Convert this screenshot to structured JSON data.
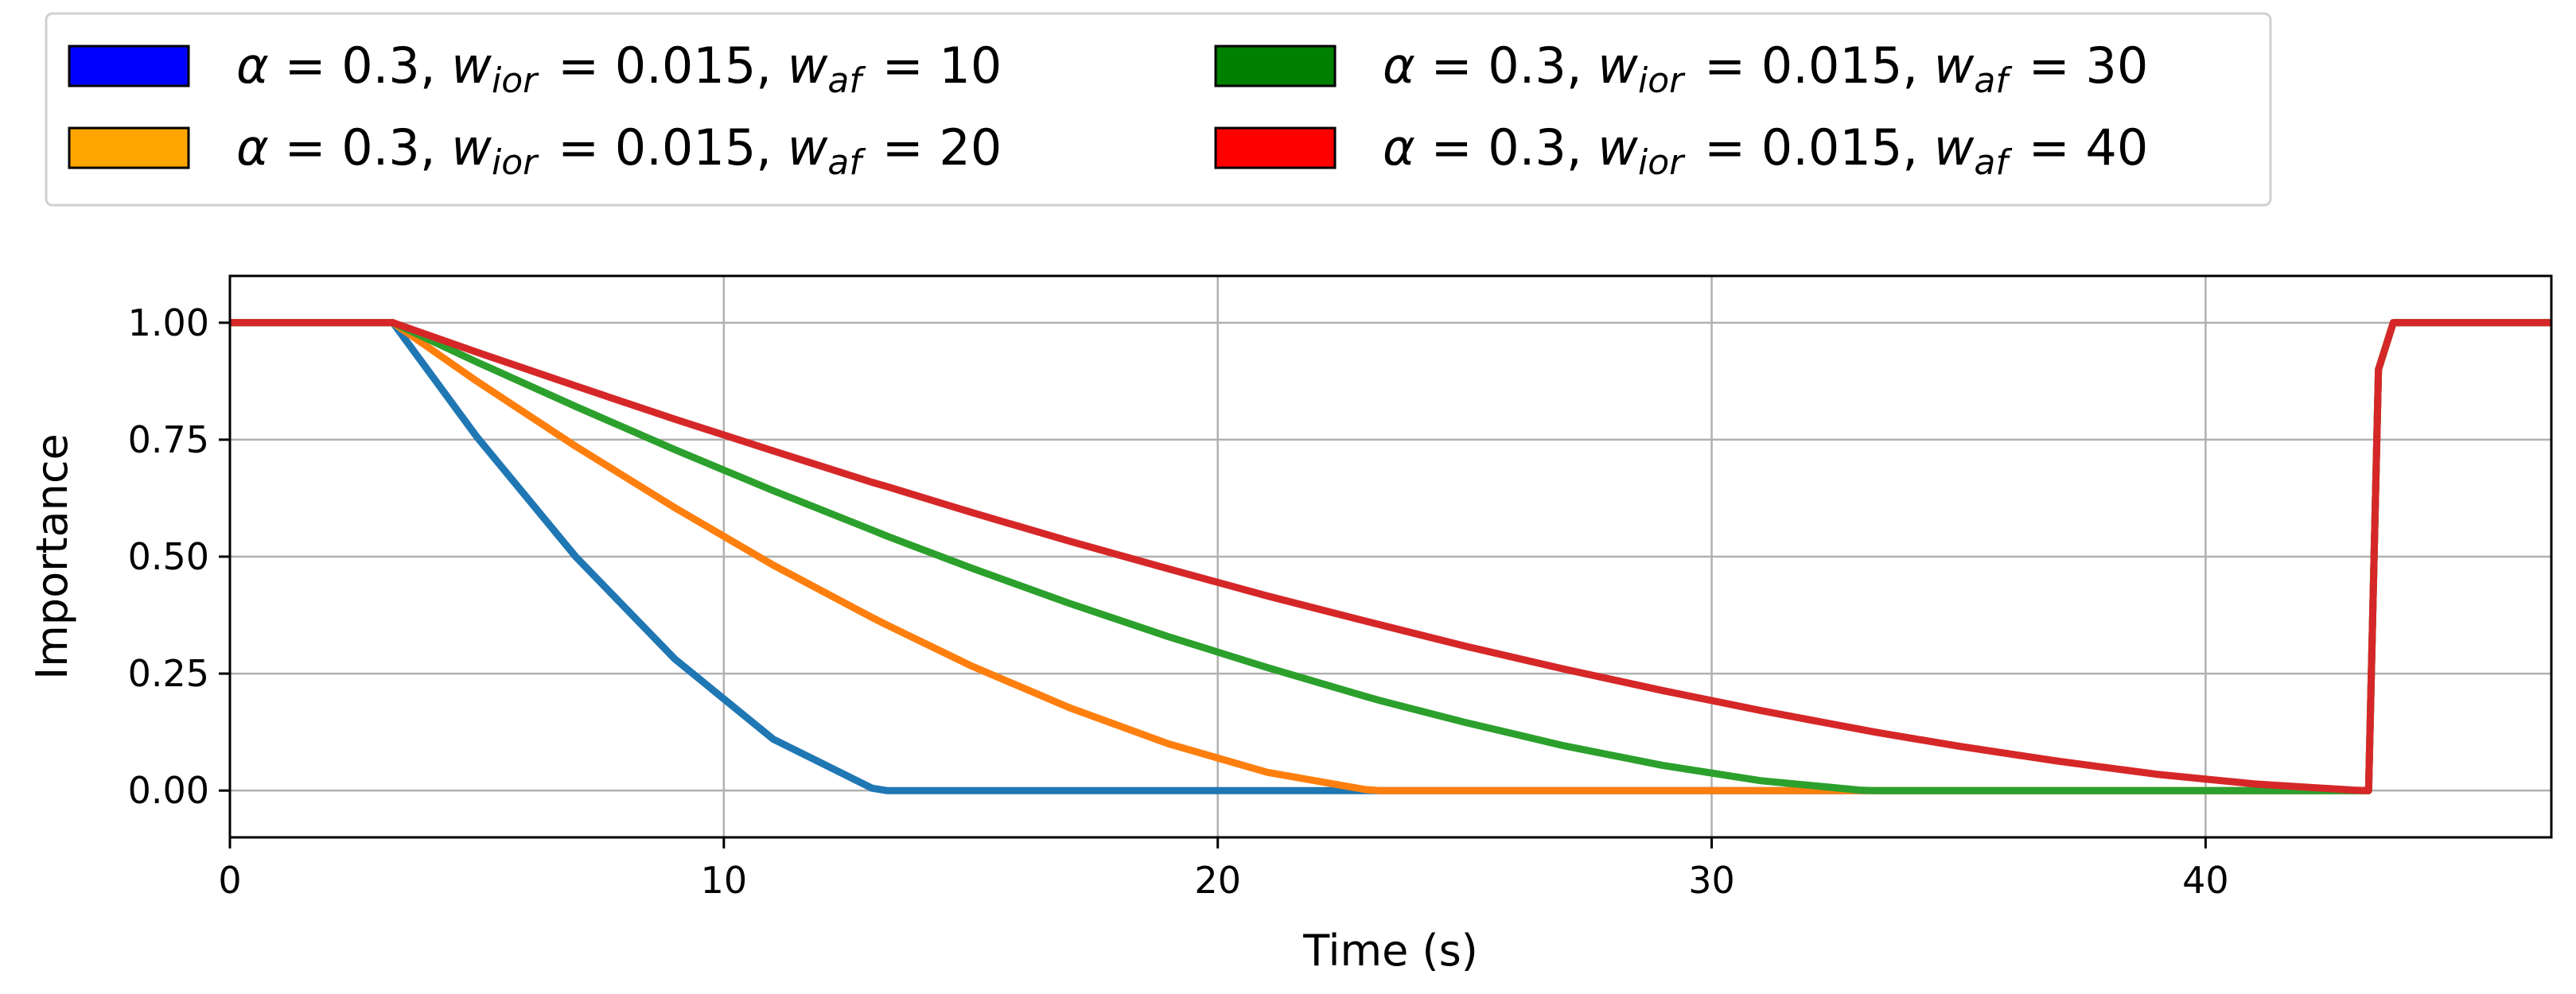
{
  "chart_data": {
    "type": "line",
    "title": "",
    "xlabel": "Time (s)",
    "ylabel": "Importance",
    "xlim": [
      0,
      47
    ],
    "ylim": [
      -0.1,
      1.1
    ],
    "grid": true,
    "legend_placement": "top-left, above plot (2 columns)",
    "xticks": [
      0,
      10,
      20,
      30,
      40
    ],
    "xtick_labels": [
      "0",
      "10",
      "20",
      "30",
      "40"
    ],
    "yticks": [
      0,
      0.25,
      0.5,
      0.75,
      1.0
    ],
    "ytick_labels": [
      "0.00",
      "0.25",
      "0.50",
      "0.75",
      "1.00"
    ],
    "x": [
      0,
      3.3,
      5,
      7,
      9,
      11,
      13,
      13.3,
      15,
      17,
      19,
      21,
      23,
      23.3,
      25,
      27,
      29,
      31,
      33,
      33.3,
      35,
      37,
      39,
      41,
      43,
      43.3,
      43.5,
      43.8,
      47
    ],
    "series": [
      {
        "name": "α = 0.3, w_ior = 0.015, w_af = 10",
        "line_color": "#1f77b4",
        "legend_color": "#0000ff",
        "values": [
          1,
          1,
          0.756,
          0.5,
          0.282,
          0.11,
          0.005,
          0,
          0,
          0,
          0,
          0,
          0,
          0,
          0,
          0,
          0,
          0,
          0,
          0,
          0,
          0,
          0,
          0,
          0,
          0,
          0.9,
          1,
          1
        ]
      },
      {
        "name": "α = 0.3, w_ior = 0.015, w_af = 20",
        "line_color": "#ff7f0e",
        "legend_color": "#ffa500",
        "values": [
          1,
          1,
          0.875,
          0.736,
          0.605,
          0.482,
          0.37,
          0.354,
          0.267,
          0.177,
          0.1,
          0.039,
          0.002,
          0,
          0,
          0,
          0,
          0,
          0,
          0,
          0,
          0,
          0,
          0,
          0,
          0,
          0.9,
          1,
          1
        ]
      },
      {
        "name": "α = 0.3, w_ior = 0.015, w_af = 30",
        "line_color": "#2ca02c",
        "legend_color": "#008000",
        "values": [
          1,
          1,
          0.916,
          0.821,
          0.729,
          0.641,
          0.557,
          0.544,
          0.476,
          0.4,
          0.329,
          0.263,
          0.201,
          0.192,
          0.146,
          0.096,
          0.054,
          0.021,
          0.001,
          0,
          0,
          0,
          0,
          0,
          0,
          0,
          0.9,
          1,
          1
        ]
      },
      {
        "name": "α = 0.3, w_ior = 0.015, w_af = 40",
        "line_color": "#d62728",
        "legend_color": "#ff0000",
        "values": [
          1,
          1,
          0.937,
          0.865,
          0.794,
          0.726,
          0.659,
          0.65,
          0.595,
          0.533,
          0.474,
          0.416,
          0.362,
          0.354,
          0.309,
          0.26,
          0.214,
          0.171,
          0.131,
          0.125,
          0.095,
          0.063,
          0.035,
          0.014,
          0.001,
          0,
          0.9,
          1,
          1
        ]
      }
    ]
  }
}
